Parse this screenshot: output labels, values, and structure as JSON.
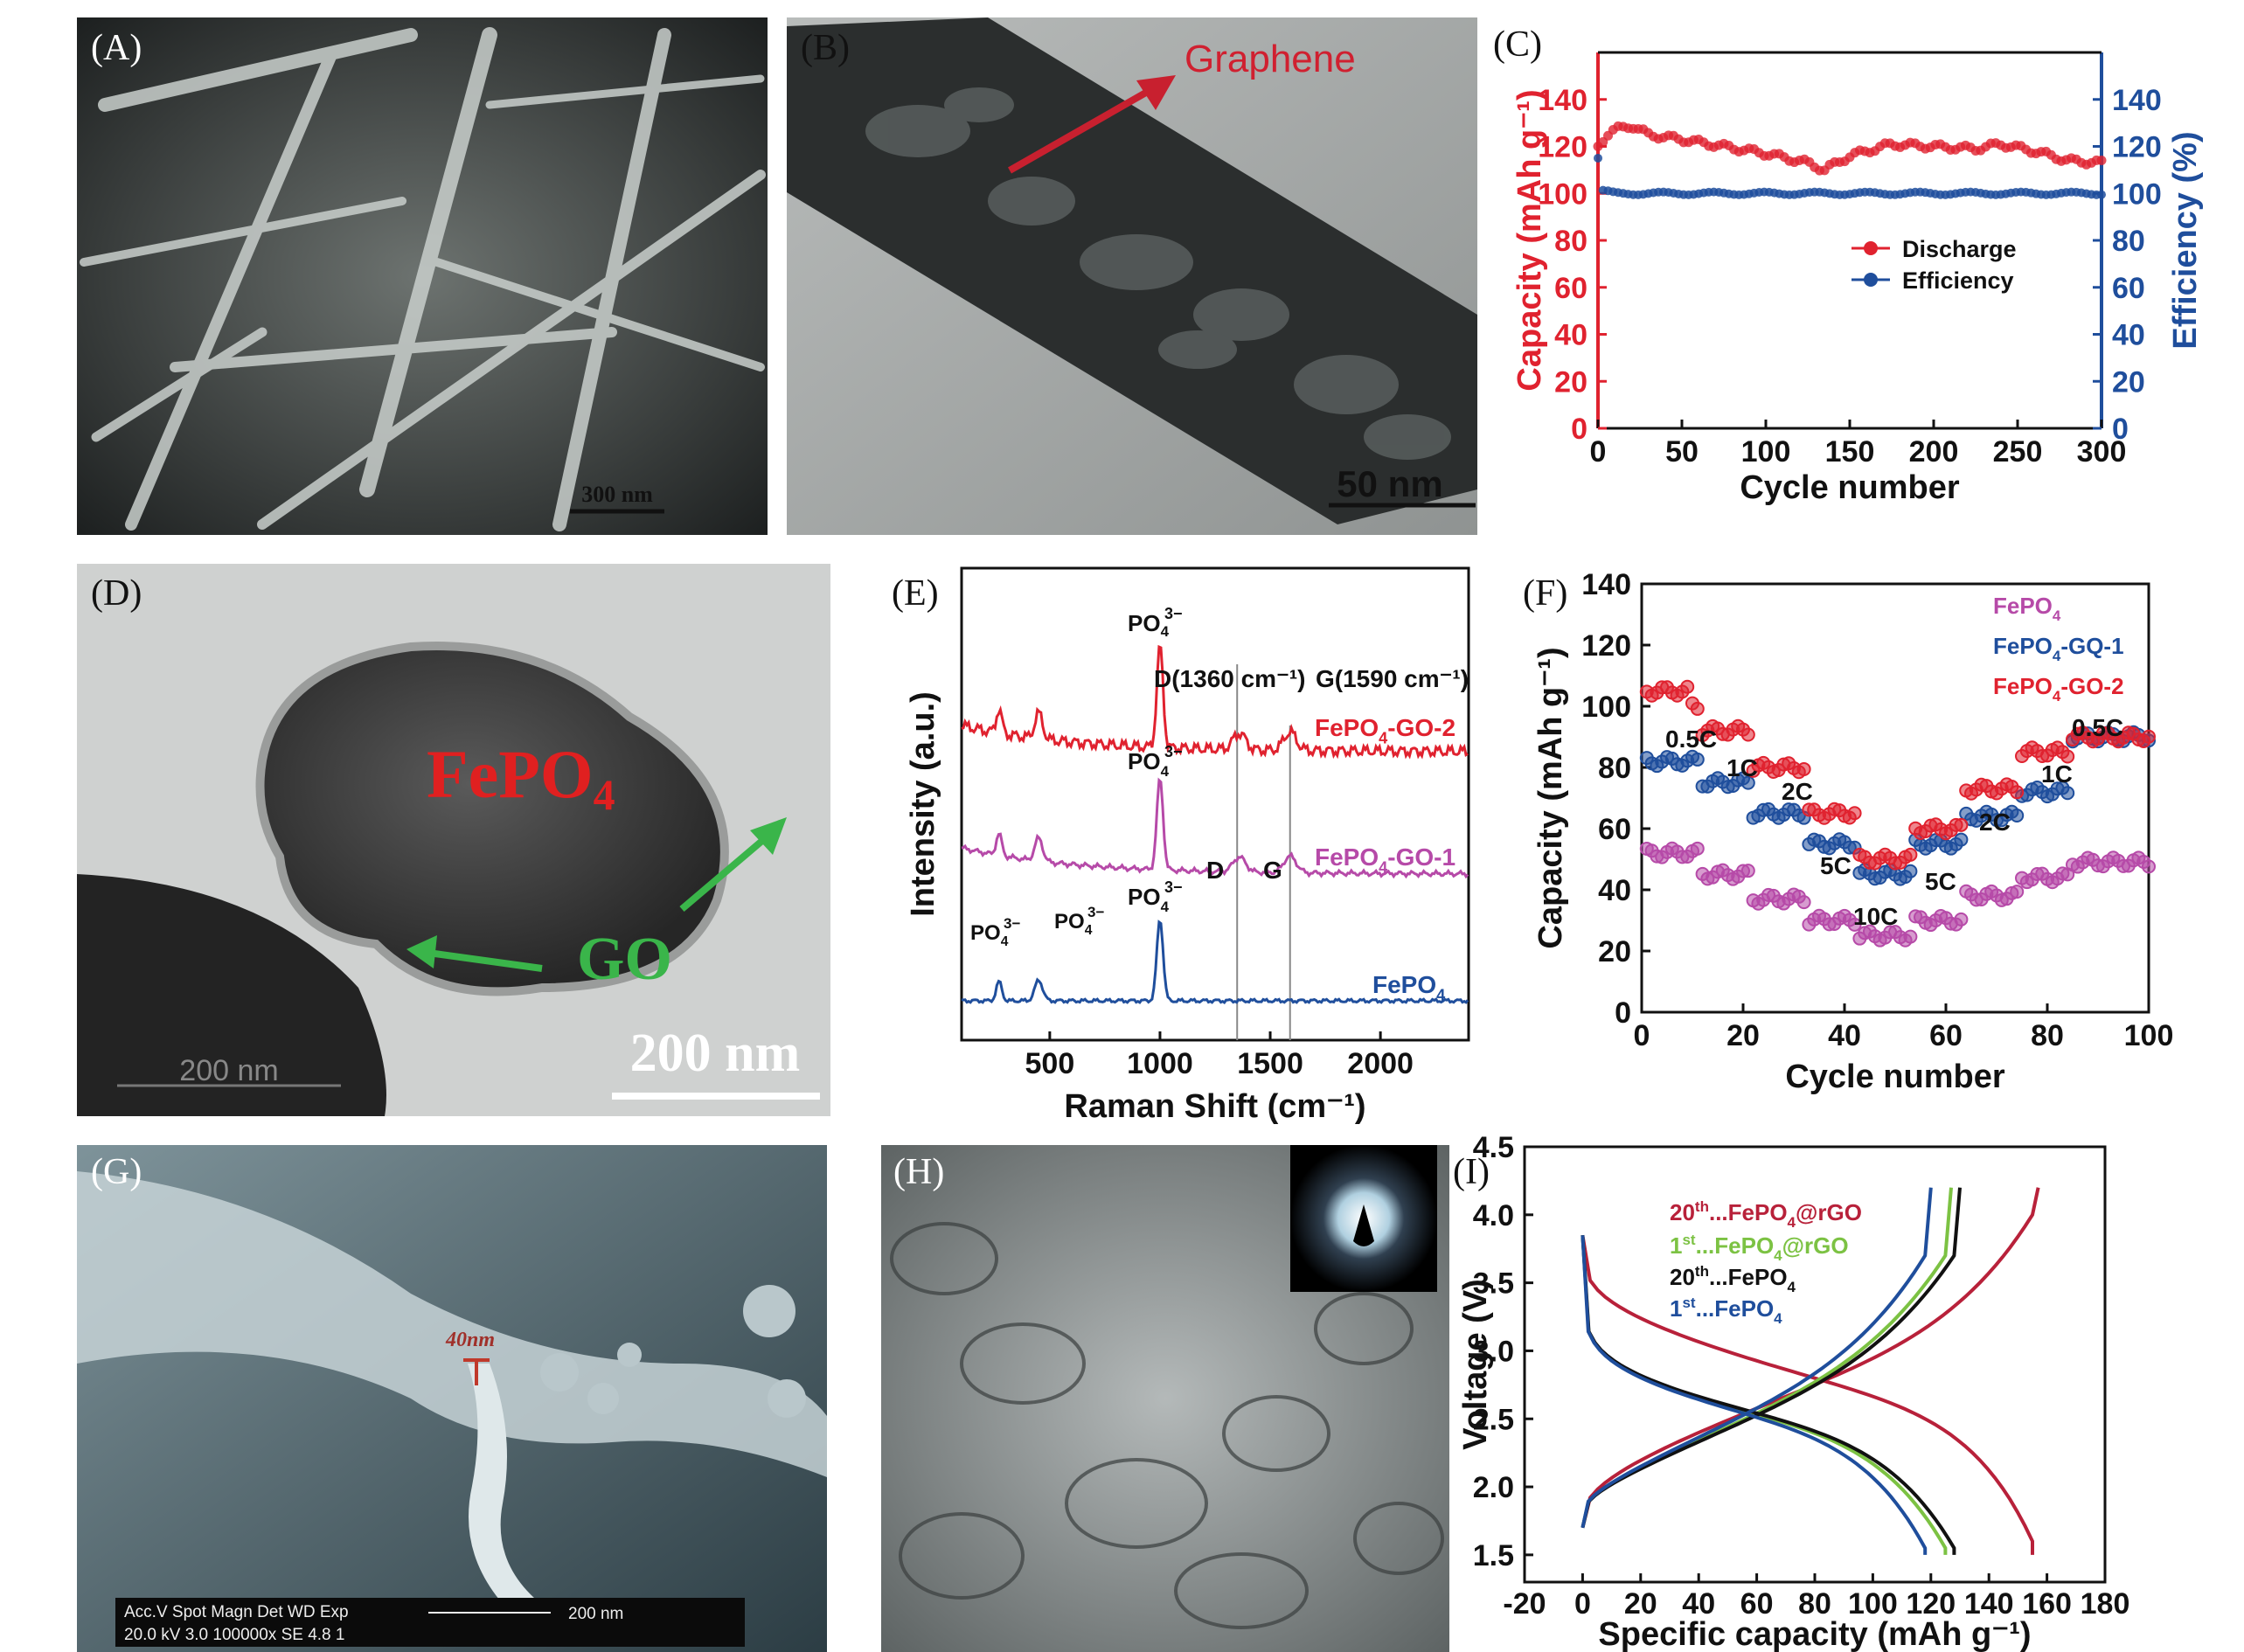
{
  "colors": {
    "red": "#e0222f",
    "blue": "#1f4e9c",
    "magenta": "#b64aa8",
    "green": "#7cc243",
    "darkred": "#b8213a",
    "black": "#111111"
  },
  "panels": {
    "A": {
      "label": "(A)",
      "scale": "300 nm"
    },
    "B": {
      "label": "(B)",
      "annotation": "Graphene",
      "scale": "50 nm"
    },
    "D": {
      "label": "(D)",
      "fepo4": "FePO",
      "fepo4_sub": "4",
      "go": "GO",
      "scale_big": "200 nm",
      "scale_small": "200 nm"
    },
    "G": {
      "label": "(G)",
      "mark": "40nm",
      "infobar": "Acc.V  Spot Magn   Det  WD  Exp",
      "infobar2": "20.0 kV 3.0  100000x SE  4.8   1",
      "scale": "200 nm"
    },
    "H": {
      "label": "(H)"
    }
  },
  "chart_data": [
    {
      "id": "C",
      "label": "(C)",
      "type": "scatter",
      "xlabel": "Cycle number",
      "ylabel": "Capacity (mAh g⁻¹)",
      "ylabel2": "Efficiency (%)",
      "xlim": [
        0,
        300
      ],
      "ylim": [
        0,
        160
      ],
      "ylim2": [
        0,
        160
      ],
      "xticks": [
        "0",
        "50",
        "100",
        "150",
        "200",
        "250",
        "300"
      ],
      "yticks": [
        "0",
        "20",
        "40",
        "60",
        "80",
        "100",
        "120",
        "140"
      ],
      "yticks2": [
        "0",
        "20",
        "40",
        "60",
        "80",
        "100",
        "120",
        "140"
      ],
      "legend": [
        "Discharge",
        "Efficiency"
      ],
      "series": [
        {
          "name": "Discharge",
          "x": [
            0,
            5,
            10,
            15,
            20,
            30,
            50,
            75,
            100,
            125,
            135,
            150,
            175,
            200,
            225,
            240,
            260,
            280,
            300
          ],
          "y": [
            120,
            125,
            127,
            128,
            129,
            125,
            123,
            120,
            117,
            113,
            110,
            116,
            121,
            120,
            119,
            121,
            118,
            114,
            113
          ]
        },
        {
          "name": "Efficiency",
          "x": [
            0,
            3,
            10,
            50,
            100,
            150,
            200,
            250,
            300
          ],
          "y": [
            115,
            101,
            100,
            100,
            100,
            100,
            100,
            100,
            100
          ]
        }
      ]
    },
    {
      "id": "E",
      "label": "(E)",
      "type": "line",
      "xlabel": "Raman Shift (cm⁻¹)",
      "ylabel": "Intensity (a.u.)",
      "xlim": [
        100,
        2400
      ],
      "xticks": [
        "500",
        "1000",
        "1500",
        "2000"
      ],
      "annotations": {
        "po4": "PO",
        "po4_sub": "4",
        "po4_sup": "3−",
        "d_band": "D(1360 cm⁻¹)",
        "g_band": "G(1590 cm⁻¹)",
        "d": "D",
        "g": "G"
      },
      "series": [
        {
          "name": "FePO₄-GO-2",
          "name_main": "FePO",
          "name_sub": "4",
          "name_tail": "-GO-2"
        },
        {
          "name": "FePO₄-GO-1",
          "name_main": "FePO",
          "name_sub": "4",
          "name_tail": "-GO-1"
        },
        {
          "name": "FePO₄",
          "name_main": "FePO",
          "name_sub": "4",
          "name_tail": ""
        }
      ]
    },
    {
      "id": "F",
      "label": "(F)",
      "type": "scatter",
      "xlabel": "Cycle number",
      "ylabel": "Capacity (mAh g⁻¹)",
      "xlim": [
        0,
        100
      ],
      "ylim": [
        0,
        140
      ],
      "xticks": [
        "0",
        "20",
        "40",
        "60",
        "80",
        "100"
      ],
      "yticks": [
        "0",
        "20",
        "40",
        "60",
        "80",
        "100",
        "120",
        "140"
      ],
      "rates_top": [
        "0.5C",
        "1C",
        "2C",
        "5C",
        "10C",
        "5C",
        "2C",
        "1C",
        "0.5C"
      ],
      "series": [
        {
          "name": "FePO₄",
          "name_main": "FePO",
          "name_sub": "4",
          "name_tail": "",
          "steps": [
            52,
            45,
            37,
            30,
            25,
            30,
            38,
            44,
            49
          ]
        },
        {
          "name": "FePO₄-GQ-1",
          "name_main": "FePO",
          "name_sub": "4",
          "name_tail": "-GQ-1",
          "steps": [
            82,
            75,
            65,
            55,
            45,
            55,
            64,
            72,
            90
          ]
        },
        {
          "name": "FePO₄-GO-2",
          "name_main": "FePO",
          "name_sub": "4",
          "name_tail": "-GO-2",
          "steps": [
            100,
            92,
            80,
            65,
            50,
            60,
            73,
            85,
            90
          ]
        }
      ]
    },
    {
      "id": "I",
      "label": "(I)",
      "type": "line",
      "xlabel": "Specific capacity (mAh g⁻¹)",
      "ylabel": "Voltage (V)",
      "xlim": [
        -20,
        180
      ],
      "ylim": [
        1.3,
        4.5
      ],
      "xticks": [
        "-20",
        "0",
        "20",
        "40",
        "60",
        "80",
        "100",
        "120",
        "140",
        "160",
        "180"
      ],
      "yticks": [
        "1.5",
        "2.0",
        "2.5",
        "3.0",
        "3.5",
        "4.0",
        "4.5"
      ],
      "series": [
        {
          "name": "20th...FePO₄@rGO",
          "ord": "20",
          "sup": "th",
          "main": "...FePO",
          "sub": "4",
          "tail": "@rGO",
          "cap": 155
        },
        {
          "name": "1st...FePO₄@rGO",
          "ord": "1",
          "sup": "st",
          "main": "...FePO",
          "sub": "4",
          "tail": "@rGO",
          "cap": 125
        },
        {
          "name": "20th...FePO₄",
          "ord": "20",
          "sup": "th",
          "main": "...FePO",
          "sub": "4",
          "tail": "",
          "cap": 128
        },
        {
          "name": "1st...FePO₄",
          "ord": "1",
          "sup": "st",
          "main": "...FePO",
          "sub": "4",
          "tail": "",
          "cap": 118
        }
      ]
    }
  ]
}
